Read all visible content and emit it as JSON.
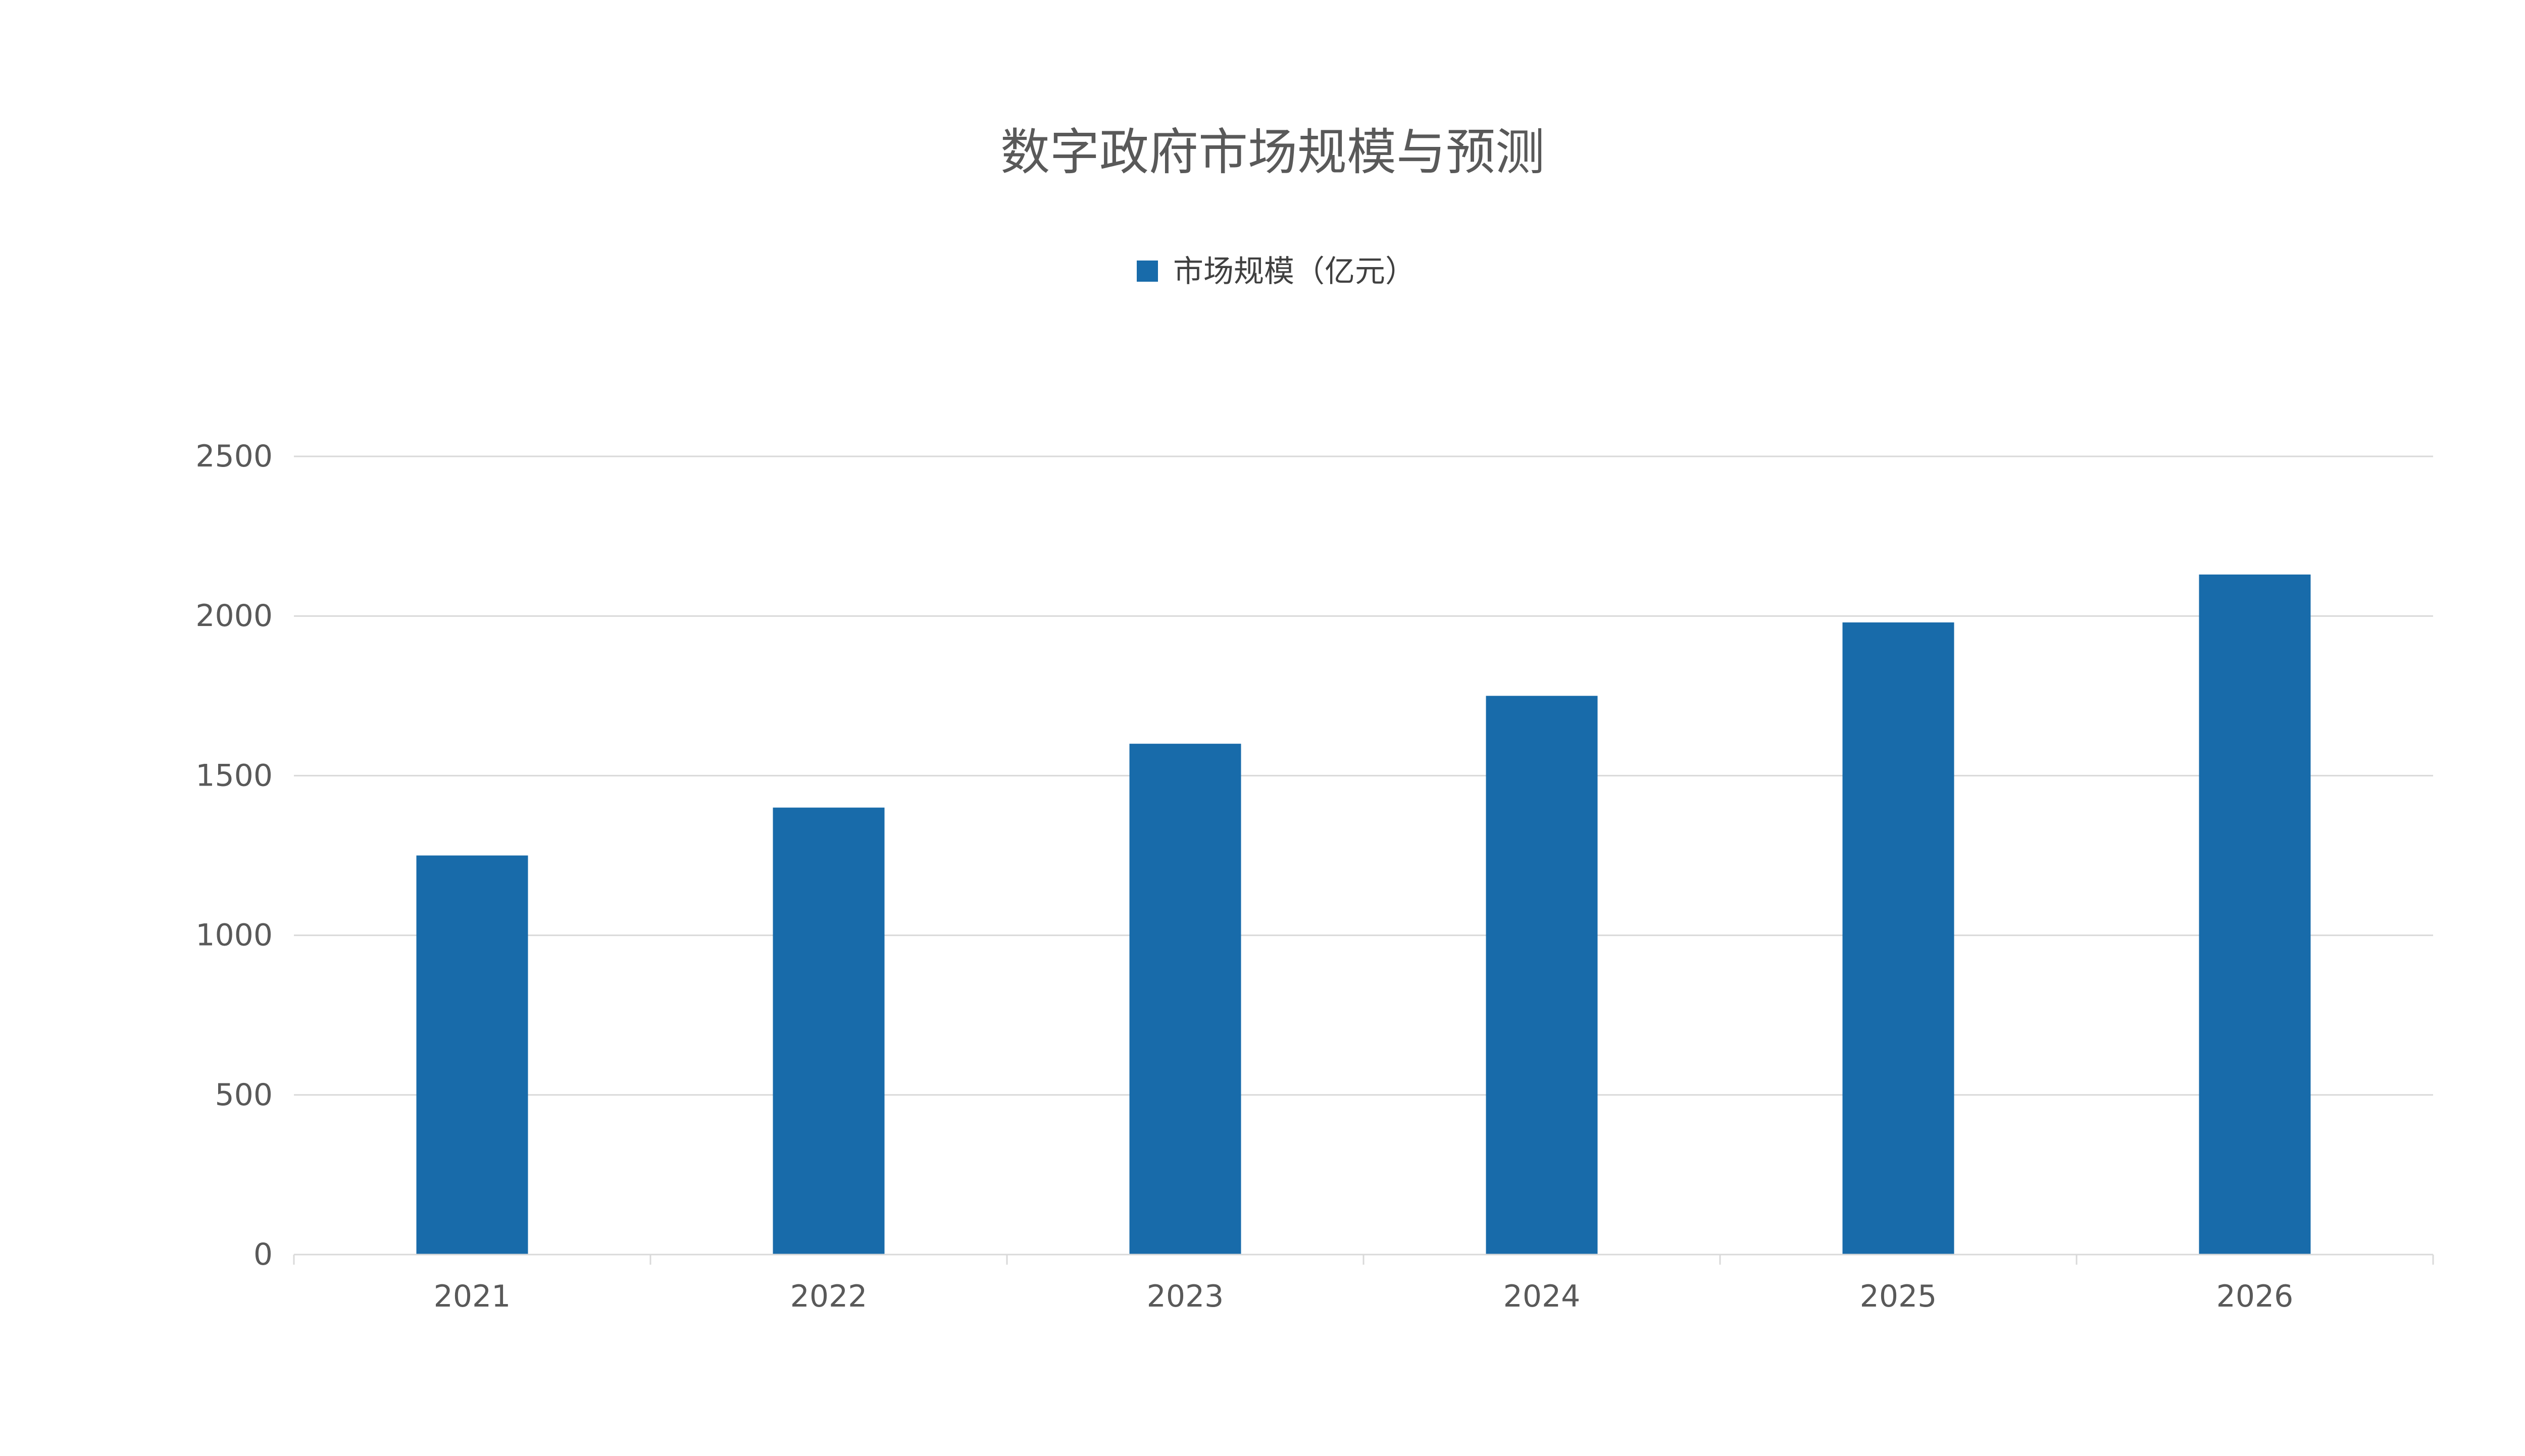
{
  "chart_data": {
    "type": "bar",
    "title": "数字政府市场规模与预测",
    "xlabel": "",
    "ylabel": "",
    "categories": [
      "2021",
      "2022",
      "2023",
      "2024",
      "2025",
      "2026"
    ],
    "series": [
      {
        "name": "市场规模（亿元）",
        "values": [
          1250,
          1400,
          1600,
          1750,
          1980,
          2130
        ],
        "color": "#186BAA"
      }
    ],
    "ylim": [
      0,
      2500
    ],
    "yticks": [
      0,
      500,
      1000,
      1500,
      2000,
      2500
    ],
    "grid": true,
    "legend_position": "top-center"
  }
}
